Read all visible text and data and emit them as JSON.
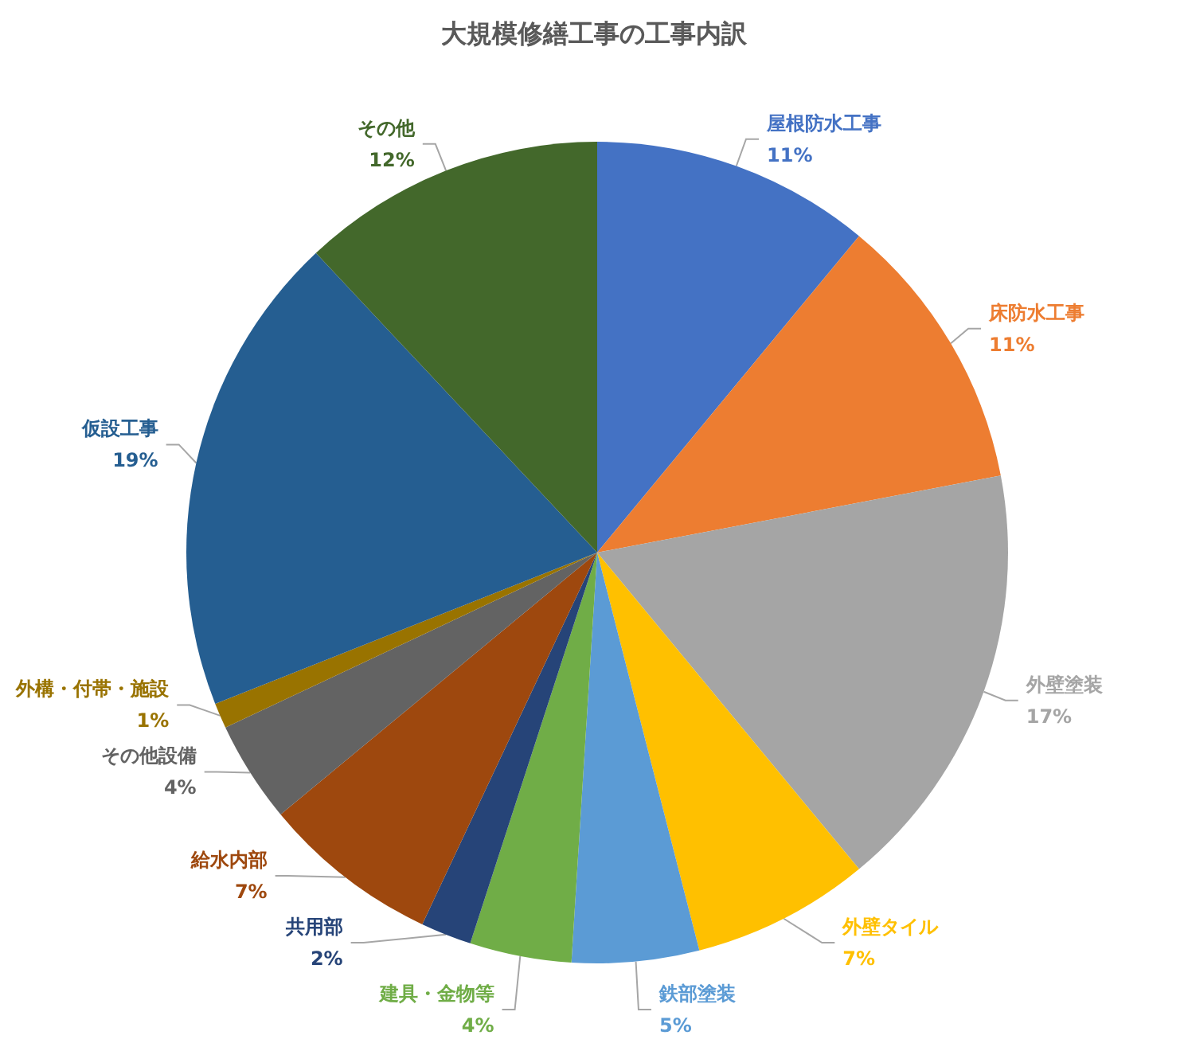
{
  "chart_data": {
    "type": "pie",
    "title": "大規模修繕工事の工事内訳",
    "categories": [
      "屋根防水工事",
      "床防水工事",
      "外壁塗装",
      "外壁タイル",
      "鉄部塗装",
      "建具・金物等",
      "共用部",
      "給水内部",
      "その他設備",
      "外構・付帯・施設",
      "仮設工事",
      "その他"
    ],
    "values": [
      11,
      11,
      17,
      7,
      5,
      4,
      2,
      7,
      4,
      1,
      19,
      12
    ],
    "value_labels": [
      "11%",
      "11%",
      "17%",
      "7%",
      "5%",
      "4%",
      "2%",
      "7%",
      "4%",
      "1%",
      "19%",
      "12%"
    ],
    "colors": [
      "#4472c4",
      "#ed7d31",
      "#a5a5a5",
      "#ffc000",
      "#5b9bd5",
      "#70ad47",
      "#264478",
      "#9e480e",
      "#636363",
      "#997300",
      "#255e91",
      "#43682b"
    ],
    "legend": false
  }
}
